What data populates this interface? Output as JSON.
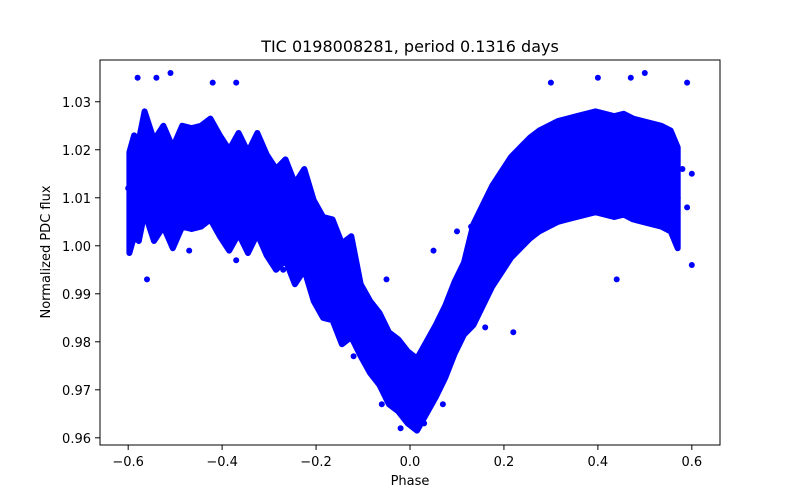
{
  "chart_data": {
    "type": "scatter",
    "title": "TIC 0198008281, period 0.1316 days",
    "xlabel": "Phase",
    "ylabel": "Normalized PDC flux",
    "xlim": [
      -0.66,
      0.66
    ],
    "ylim": [
      0.9585,
      1.0387
    ],
    "xticks": [
      -0.6,
      -0.4,
      -0.2,
      0.0,
      0.2,
      0.4,
      0.6
    ],
    "xtick_labels": [
      "−0.6",
      "−0.4",
      "−0.2",
      "0.0",
      "0.2",
      "0.4",
      "0.6"
    ],
    "yticks": [
      0.96,
      0.97,
      0.98,
      0.99,
      1.0,
      1.01,
      1.02,
      1.03
    ],
    "ytick_labels": [
      "0.96",
      "0.97",
      "0.98",
      "0.99",
      "1.00",
      "1.01",
      "1.02",
      "1.03"
    ],
    "grid": false,
    "legend": "none",
    "marker_color": "#0000ff",
    "series": [
      {
        "points": [
          [
            -0.6,
            1.012
          ],
          [
            -0.595,
            1.006
          ],
          [
            -0.59,
            1.016
          ],
          [
            -0.585,
            1.009
          ],
          [
            -0.58,
            1.019
          ],
          [
            -0.575,
            1.004
          ],
          [
            -0.57,
            1.013
          ],
          [
            -0.56,
            1.022
          ],
          [
            -0.55,
            1.008
          ],
          [
            -0.54,
            1.015
          ],
          [
            -0.53,
            1.011
          ],
          [
            -0.52,
            1.018
          ],
          [
            -0.51,
            1.006
          ],
          [
            -0.5,
            1.014
          ],
          [
            -0.49,
            1.02
          ],
          [
            -0.48,
            1.009
          ],
          [
            -0.47,
            1.016
          ],
          [
            -0.46,
            1.012
          ],
          [
            -0.45,
            1.022
          ],
          [
            -0.44,
            1.007
          ],
          [
            -0.43,
            1.014
          ],
          [
            -0.42,
            1.018
          ],
          [
            -0.41,
            1.01
          ],
          [
            -0.4,
            1.015
          ],
          [
            -0.39,
            1.006
          ],
          [
            -0.38,
            1.013
          ],
          [
            -0.37,
            1.017
          ],
          [
            -0.36,
            1.009
          ],
          [
            -0.35,
            1.014
          ],
          [
            -0.34,
            1.004
          ],
          [
            -0.33,
            1.011
          ],
          [
            -0.32,
            1.015
          ],
          [
            -0.31,
            1.006
          ],
          [
            -0.3,
            1.011
          ],
          [
            -0.29,
            1.002
          ],
          [
            -0.28,
            1.009
          ],
          [
            -0.27,
            1.012
          ],
          [
            -0.26,
            1.003
          ],
          [
            -0.25,
            1.007
          ],
          [
            -0.24,
            0.998
          ],
          [
            -0.23,
            1.004
          ],
          [
            -0.22,
            1.007
          ],
          [
            -0.21,
            0.997
          ],
          [
            -0.2,
            1.001
          ],
          [
            -0.19,
            0.993
          ],
          [
            -0.18,
            0.998
          ],
          [
            -0.17,
            1.0
          ],
          [
            -0.16,
            0.99
          ],
          [
            -0.15,
            0.994
          ],
          [
            -0.14,
            0.986
          ],
          [
            -0.13,
            0.991
          ],
          [
            -0.12,
            0.992
          ],
          [
            -0.11,
            0.983
          ],
          [
            -0.1,
            0.986
          ],
          [
            -0.09,
            0.979
          ],
          [
            -0.08,
            0.983
          ],
          [
            -0.07,
            0.982
          ],
          [
            -0.06,
            0.975
          ],
          [
            -0.05,
            0.977
          ],
          [
            -0.04,
            0.972
          ],
          [
            -0.03,
            0.975
          ],
          [
            -0.02,
            0.971
          ],
          [
            -0.01,
            0.969
          ],
          [
            0.0,
            0.972
          ],
          [
            0.01,
            0.967
          ],
          [
            0.02,
            0.971
          ],
          [
            0.03,
            0.97
          ],
          [
            0.04,
            0.975
          ],
          [
            0.05,
            0.973
          ],
          [
            0.06,
            0.979
          ],
          [
            0.07,
            0.977
          ],
          [
            0.08,
            0.983
          ],
          [
            0.09,
            0.982
          ],
          [
            0.1,
            0.988
          ],
          [
            0.11,
            0.986
          ],
          [
            0.12,
            0.992
          ],
          [
            0.13,
            0.991
          ],
          [
            0.14,
            0.997
          ],
          [
            0.15,
            0.995
          ],
          [
            0.16,
            1.001
          ],
          [
            0.17,
            0.999
          ],
          [
            0.18,
            1.005
          ],
          [
            0.19,
            1.002
          ],
          [
            0.2,
            1.008
          ],
          [
            0.21,
            1.005
          ],
          [
            0.22,
            1.011
          ],
          [
            0.23,
            1.007
          ],
          [
            0.24,
            1.013
          ],
          [
            0.25,
            1.009
          ],
          [
            0.26,
            1.015
          ],
          [
            0.27,
            1.01
          ],
          [
            0.28,
            1.017
          ],
          [
            0.29,
            1.011
          ],
          [
            0.3,
            1.018
          ],
          [
            0.31,
            1.012
          ],
          [
            0.32,
            1.019
          ],
          [
            0.33,
            1.013
          ],
          [
            0.34,
            1.019
          ],
          [
            0.35,
            1.013
          ],
          [
            0.36,
            1.02
          ],
          [
            0.37,
            1.014
          ],
          [
            0.38,
            1.02
          ],
          [
            0.39,
            1.014
          ],
          [
            0.4,
            1.021
          ],
          [
            0.41,
            1.014
          ],
          [
            0.42,
            1.02
          ],
          [
            0.43,
            1.013
          ],
          [
            0.44,
            1.02
          ],
          [
            0.45,
            1.014
          ],
          [
            0.46,
            1.02
          ],
          [
            0.47,
            1.013
          ],
          [
            0.48,
            1.019
          ],
          [
            0.49,
            1.012
          ],
          [
            0.5,
            1.019
          ],
          [
            0.51,
            1.012
          ],
          [
            0.52,
            1.018
          ],
          [
            0.53,
            1.011
          ],
          [
            0.54,
            1.018
          ],
          [
            0.55,
            1.01
          ],
          [
            0.56,
            1.017
          ],
          [
            0.57,
            1.01
          ],
          [
            0.58,
            1.016
          ],
          [
            0.59,
            1.008
          ],
          [
            0.6,
            1.015
          ],
          [
            -0.58,
            1.035
          ],
          [
            -0.54,
            1.035
          ],
          [
            -0.51,
            1.036
          ],
          [
            -0.42,
            1.034
          ],
          [
            -0.37,
            1.034
          ],
          [
            -0.56,
            0.993
          ],
          [
            -0.47,
            0.999
          ],
          [
            -0.37,
            0.997
          ],
          [
            -0.27,
            0.995
          ],
          [
            -0.19,
            0.987
          ],
          [
            -0.12,
            0.977
          ],
          [
            -0.06,
            0.967
          ],
          [
            -0.02,
            0.962
          ],
          [
            0.03,
            0.963
          ],
          [
            0.07,
            0.967
          ],
          [
            0.1,
            0.979
          ],
          [
            0.16,
            0.983
          ],
          [
            0.22,
            0.982
          ],
          [
            0.3,
            1.034
          ],
          [
            0.4,
            1.035
          ],
          [
            0.47,
            1.035
          ],
          [
            0.5,
            1.036
          ],
          [
            0.59,
            1.034
          ],
          [
            0.44,
            0.993
          ],
          [
            0.6,
            0.996
          ],
          [
            0.05,
            0.999
          ],
          [
            0.1,
            1.003
          ],
          [
            0.13,
            1.004
          ],
          [
            0.18,
            1.009
          ],
          [
            -0.05,
            0.993
          ]
        ]
      }
    ]
  }
}
